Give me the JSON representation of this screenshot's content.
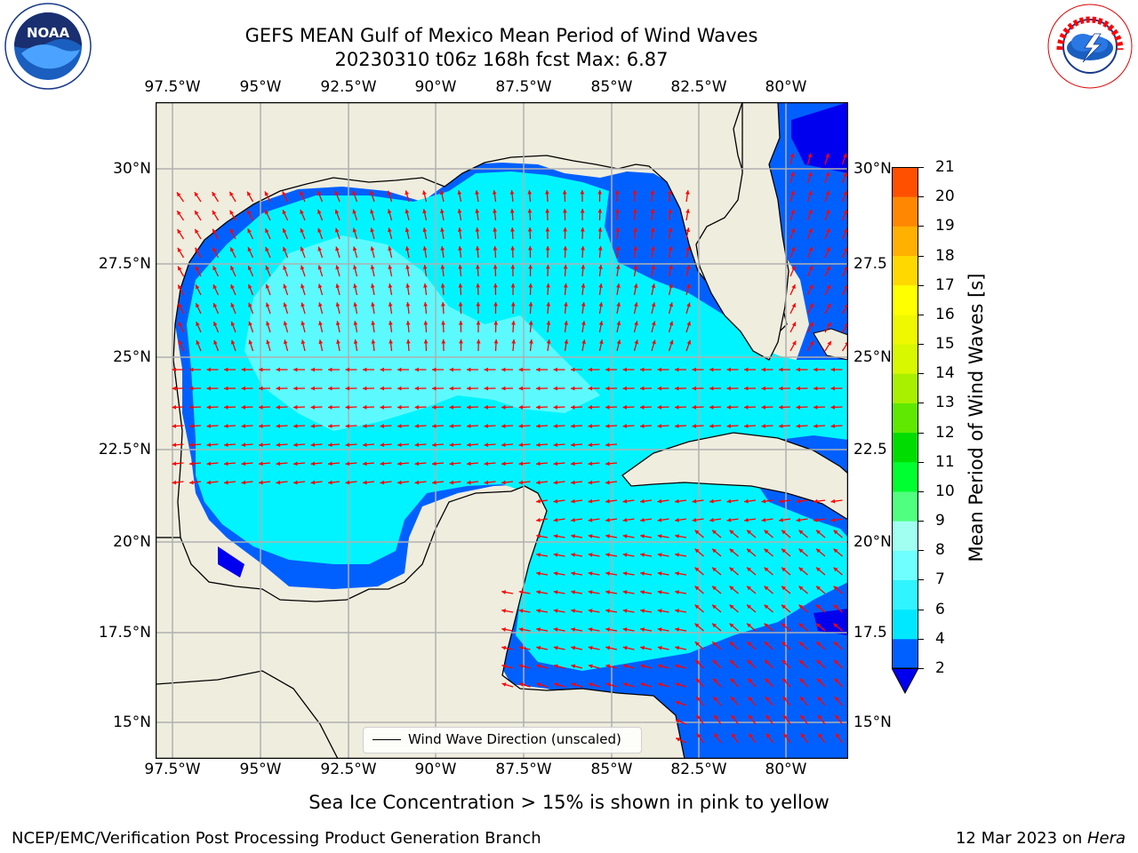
{
  "header": {
    "title_line1": "GEFS MEAN Gulf of Mexico Mean Period of Wind Waves",
    "title_line2": "20230310 t06z 168h fcst   Max: 6.87",
    "left_logo_text": "NOAA",
    "right_logo_text": "NATIONAL WEATHER SERVICE"
  },
  "map": {
    "lon_labels": [
      "97.5°W",
      "95°W",
      "92.5°W",
      "90°W",
      "87.5°W",
      "85°W",
      "82.5°W",
      "80°W"
    ],
    "lat_labels_left": [
      "30°N",
      "27.5°N",
      "25°N",
      "22.5°N",
      "20°N",
      "17.5°N",
      "15°N"
    ],
    "lat_labels_right": [
      "30°N",
      "27.5",
      "25°N",
      "22.5",
      "20°N",
      "17.5",
      "15°N"
    ],
    "legend_label": "Wind Wave Direction (unscaled)",
    "land_color": "#efedde",
    "grid_color": "#b0b0b0",
    "arrow_color": "#ff0000"
  },
  "colorbar": {
    "label": "Mean Period of Wind Waves [s]",
    "ticks": [
      "2",
      "4",
      "6",
      "7",
      "8",
      "9",
      "10",
      "11",
      "12",
      "13",
      "14",
      "15",
      "16",
      "17",
      "18",
      "19",
      "20",
      "21"
    ],
    "colors": [
      "#0060ff",
      "#00e8ff",
      "#30f4ff",
      "#70ffff",
      "#a0fff0",
      "#50ff80",
      "#00ff30",
      "#00dd00",
      "#60e800",
      "#a8f000",
      "#d8f800",
      "#f0f800",
      "#ffff00",
      "#ffd800",
      "#ffb000",
      "#ff8800",
      "#ff5000",
      "#ff2800",
      "#ff0000"
    ]
  },
  "footer": {
    "ice_note": "Sea Ice Concentration > 15% is shown in pink to yellow",
    "producer": "NCEP/EMC/Verification Post Processing Product Generation Branch",
    "date_prefix": "12 Mar 2023 on ",
    "date_machine": "Hera"
  }
}
